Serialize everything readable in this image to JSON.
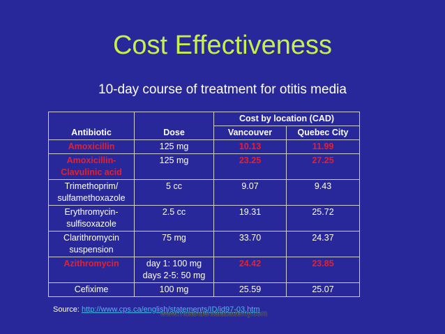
{
  "title": "Cost Effectiveness",
  "subtitle": "10-day course of treatment for otitis media",
  "table": {
    "group_header": "Cost by location (CAD)",
    "headers": [
      "Antibiotic",
      "Dose",
      "Vancouver",
      "Quebec City"
    ],
    "rows": [
      {
        "antibiotic": [
          "Amoxicillin"
        ],
        "dose": [
          "125 mg"
        ],
        "vancouver": "10.13",
        "quebec": "11.99",
        "highlight": true
      },
      {
        "antibiotic": [
          "Amoxicillin-",
          "Clavulinic acid"
        ],
        "dose": [
          "125 mg"
        ],
        "vancouver": "23.25",
        "quebec": "27.25",
        "highlight": true
      },
      {
        "antibiotic": [
          "Trimethoprim/",
          "sulfamethoxazole"
        ],
        "dose": [
          "5 cc"
        ],
        "vancouver": "9.07",
        "quebec": "9.43",
        "highlight": false
      },
      {
        "antibiotic": [
          "Erythromycin-",
          "sulfisoxazole"
        ],
        "dose": [
          "2.5 cc"
        ],
        "vancouver": "19.31",
        "quebec": "25.72",
        "highlight": false
      },
      {
        "antibiotic": [
          "Clarithromycin",
          "suspension"
        ],
        "dose": [
          "75 mg"
        ],
        "vancouver": "33.70",
        "quebec": "24.37",
        "highlight": false
      },
      {
        "antibiotic": [
          "Azithromycin"
        ],
        "dose": [
          "day 1: 100 mg",
          "days 2-5: 50 mg"
        ],
        "vancouver": "24.42",
        "quebec": "23.85",
        "highlight": true
      },
      {
        "antibiotic": [
          "Cefixime"
        ],
        "dose": [
          "100 mg"
        ],
        "vancouver": "25.59",
        "quebec": "25.07",
        "highlight": false
      }
    ]
  },
  "source": {
    "label": "Source: ",
    "link": "http://www.cps.ca/english/statements/ID/id97-03.htm"
  },
  "watermark": "www.indiandentalacademy.com",
  "colors": {
    "background": "#28289b",
    "title": "#c8f04c",
    "highlight": "#e8202a",
    "link": "#4cb8e8"
  }
}
